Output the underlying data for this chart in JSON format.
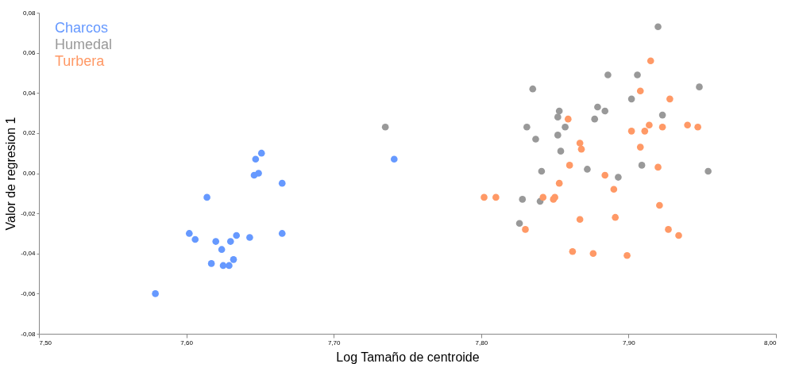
{
  "chart_data": {
    "type": "scatter",
    "xlabel": "Log Tamaño de centroide",
    "ylabel": "Valor de regresion 1",
    "legend": "top left",
    "marker": "circle",
    "grid": false,
    "xlim": [
      7.5,
      8.0
    ],
    "ylim": [
      -0.08,
      0.08
    ],
    "xticks": [
      {
        "value": 7.5,
        "label": "7,50"
      },
      {
        "value": 7.6,
        "label": "7,60"
      },
      {
        "value": 7.7,
        "label": "7,70"
      },
      {
        "value": 7.8,
        "label": "7,80"
      },
      {
        "value": 7.9,
        "label": "7,90"
      },
      {
        "value": 8.0,
        "label": "8,00"
      }
    ],
    "yticks": [
      {
        "value": -0.08,
        "label": "-0,08"
      },
      {
        "value": -0.06,
        "label": "-0,06"
      },
      {
        "value": -0.04,
        "label": "-0,04"
      },
      {
        "value": -0.02,
        "label": "-0,02"
      },
      {
        "value": 0,
        "label": "0,00"
      },
      {
        "value": 0.02,
        "label": "0,02"
      },
      {
        "value": 0.04,
        "label": "0,04"
      },
      {
        "value": 0.06,
        "label": "0,06"
      },
      {
        "value": 0.08,
        "label": "0,08"
      }
    ],
    "series": [
      {
        "name": "Charcos",
        "color": "#6699ff",
        "x": [
          7.579,
          7.614,
          7.602,
          7.606,
          7.62,
          7.624,
          7.63,
          7.634,
          7.643,
          7.617,
          7.625,
          7.629,
          7.632,
          7.651,
          7.647,
          7.649,
          7.646,
          7.665,
          7.665,
          7.741
        ],
        "values": [
          -0.06,
          -0.012,
          -0.03,
          -0.033,
          -0.034,
          -0.038,
          -0.034,
          -0.031,
          -0.032,
          -0.045,
          -0.046,
          -0.046,
          -0.043,
          0.01,
          0.007,
          0.0,
          -0.001,
          -0.005,
          -0.03,
          0.007
        ]
      },
      {
        "name": "Humedal",
        "color": "#999999",
        "x": [
          7.92,
          7.735,
          7.886,
          7.906,
          7.835,
          7.902,
          7.879,
          7.884,
          7.853,
          7.852,
          7.877,
          7.831,
          7.857,
          7.852,
          7.837,
          7.854,
          7.872,
          7.841,
          7.893,
          7.828,
          7.84,
          7.826,
          7.948,
          7.923,
          7.909,
          7.954
        ],
        "values": [
          0.073,
          0.023,
          0.049,
          0.049,
          0.042,
          0.037,
          0.033,
          0.031,
          0.031,
          0.028,
          0.027,
          0.023,
          0.023,
          0.019,
          0.017,
          0.011,
          0.002,
          0.001,
          -0.002,
          -0.013,
          -0.014,
          -0.025,
          0.043,
          0.029,
          0.004,
          0.001
        ]
      },
      {
        "name": "Turbera",
        "color": "#ff9966",
        "x": [
          7.915,
          7.908,
          7.928,
          7.914,
          7.94,
          7.947,
          7.902,
          7.911,
          7.923,
          7.908,
          7.92,
          7.921,
          7.927,
          7.934,
          7.859,
          7.867,
          7.868,
          7.86,
          7.884,
          7.853,
          7.89,
          7.842,
          7.85,
          7.849,
          7.83,
          7.867,
          7.891,
          7.862,
          7.876,
          7.899,
          7.802,
          7.81
        ],
        "values": [
          0.056,
          0.041,
          0.037,
          0.024,
          0.024,
          0.023,
          0.021,
          0.021,
          0.023,
          0.013,
          0.003,
          -0.016,
          -0.028,
          -0.031,
          0.027,
          0.015,
          0.012,
          0.004,
          -0.001,
          -0.005,
          -0.008,
          -0.012,
          -0.012,
          -0.013,
          -0.028,
          -0.023,
          -0.022,
          -0.039,
          -0.04,
          -0.041,
          -0.012,
          -0.012
        ]
      }
    ]
  }
}
